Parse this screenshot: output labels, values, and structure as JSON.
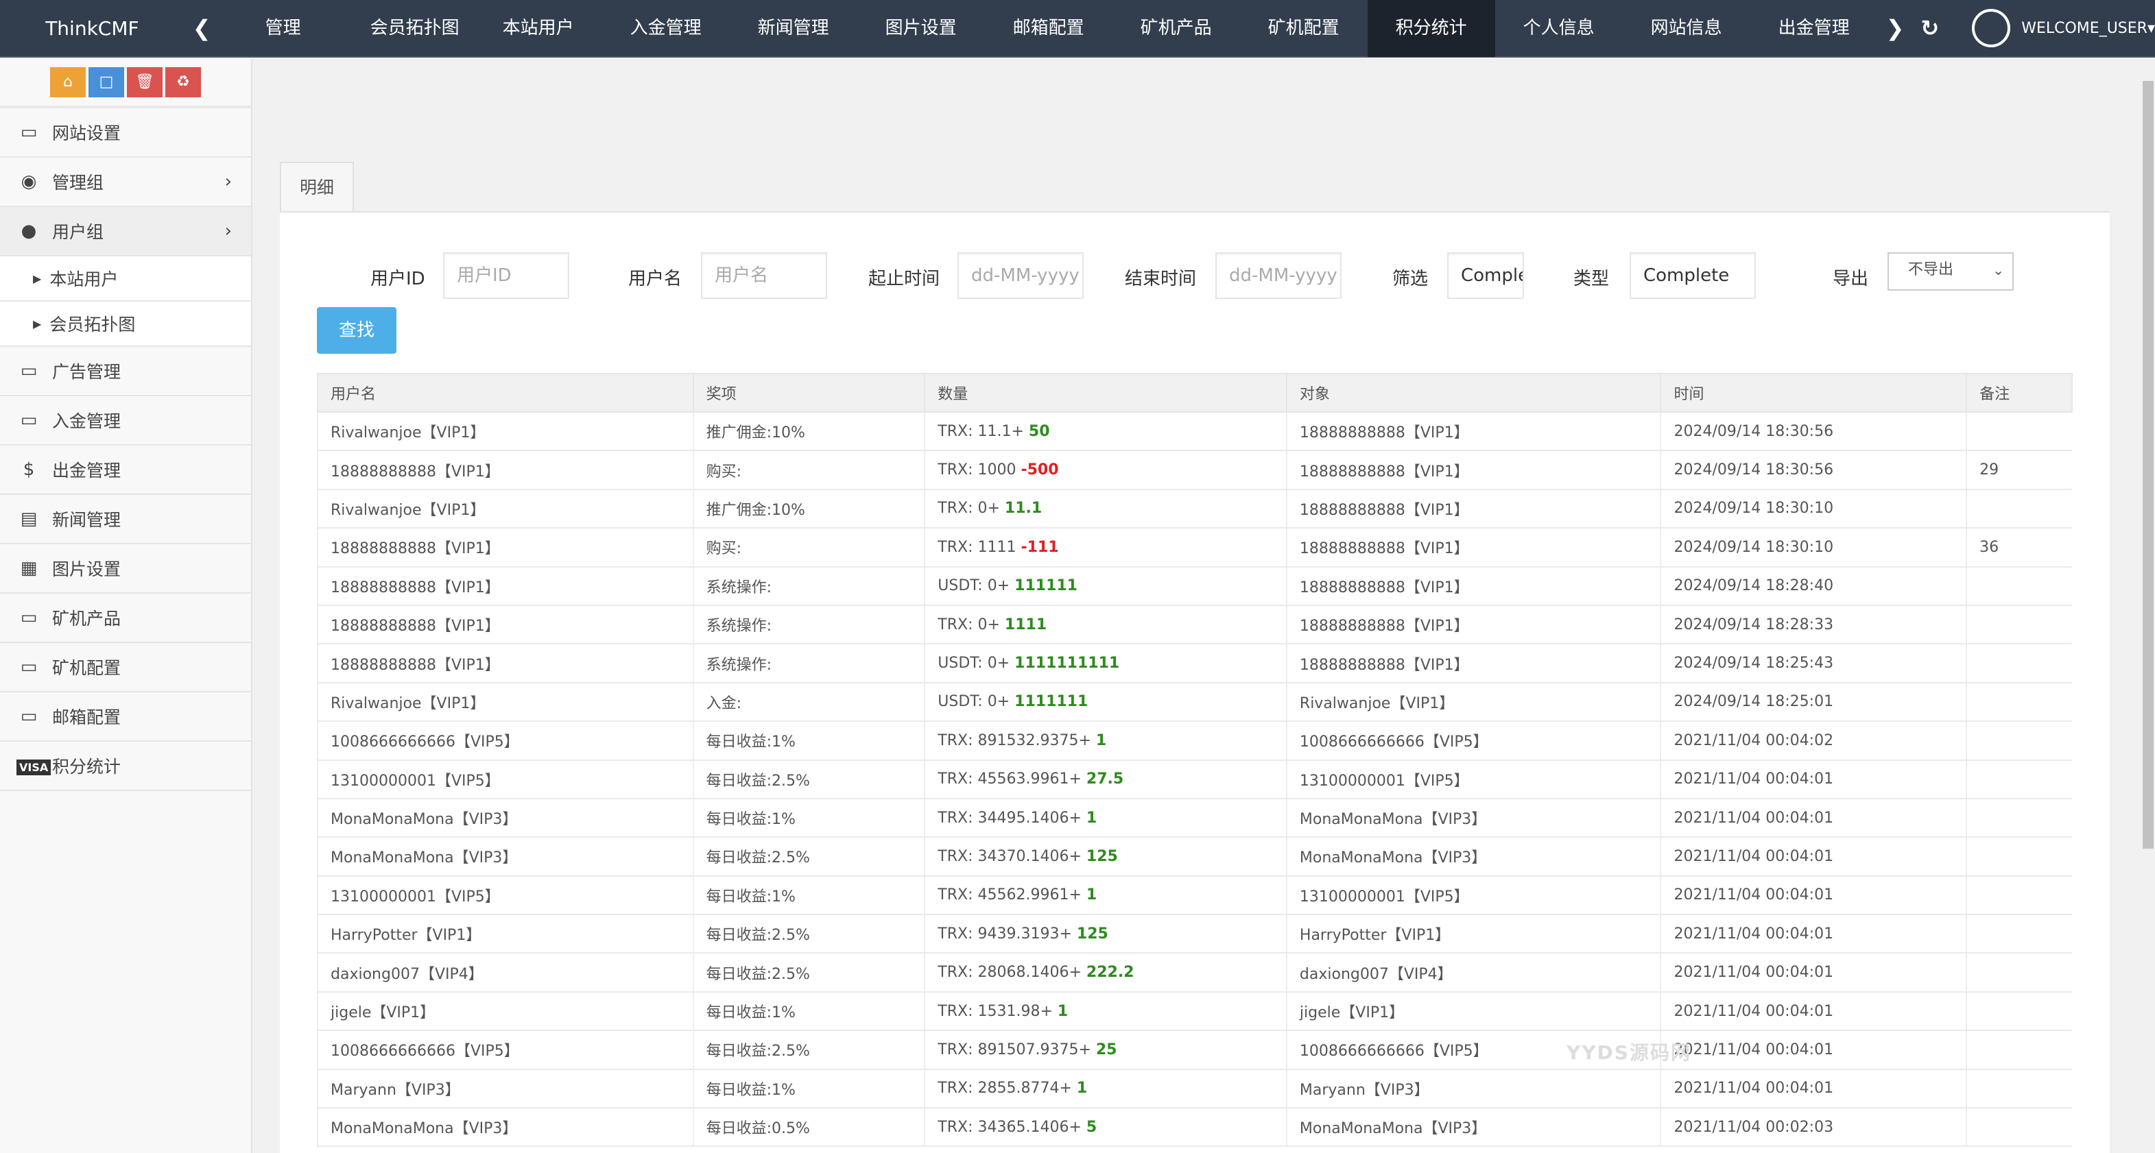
{
  "brand": "ThinkCMF",
  "nav": {
    "items": [
      "管理",
      "会员拓扑图",
      "本站用户",
      "入金管理",
      "新闻管理",
      "图片设置",
      "邮箱配置",
      "矿机产品",
      "矿机配置",
      "积分统计",
      "个人信息",
      "网站信息",
      "出金管理"
    ],
    "active": "积分统计",
    "user": "WELCOME_USER"
  },
  "sidebar": {
    "items": [
      {
        "label": "网站设置",
        "icon": "monitor-icon"
      },
      {
        "label": "管理组",
        "icon": "user-circle-icon"
      },
      {
        "label": "用户组",
        "icon": "user-icon"
      },
      {
        "label": "广告管理",
        "icon": "monitor-icon"
      },
      {
        "label": "入金管理",
        "icon": "monitor-icon"
      },
      {
        "label": "出金管理",
        "icon": "dollar-icon"
      },
      {
        "label": "新闻管理",
        "icon": "newspaper-icon"
      },
      {
        "label": "图片设置",
        "icon": "image-icon"
      },
      {
        "label": "矿机产品",
        "icon": "monitor-icon"
      },
      {
        "label": "矿机配置",
        "icon": "monitor-icon"
      },
      {
        "label": "邮箱配置",
        "icon": "monitor-icon"
      },
      {
        "label": "积分统计",
        "icon": "visa-icon"
      }
    ],
    "sub": [
      "本站用户",
      "会员拓扑图"
    ]
  },
  "tab": "明细",
  "filters": {
    "userid_label": "用户ID",
    "userid_ph": "用户ID",
    "username_label": "用户名",
    "username_ph": "用户名",
    "start_label": "起止时间",
    "start_ph": "dd-MM-yyyy",
    "end_label": "结束时间",
    "end_ph": "dd-MM-yyyy",
    "filter_label": "筛选",
    "filter_value": "Comple",
    "type_label": "类型",
    "type_value": "Complete",
    "export_label": "导出",
    "export_value": "不导出",
    "search": "查找"
  },
  "table": {
    "headers": [
      "用户名",
      "奖项",
      "数量",
      "对象",
      "时间",
      "备注"
    ],
    "rows": [
      [
        "Rivalwanjoe【VIP1】",
        "推广佣金:10%",
        "TRX: 11.1+ ",
        "50",
        "pos",
        "18888888888【VIP1】",
        "2024/09/14 18:30:56",
        ""
      ],
      [
        "18888888888【VIP1】",
        "购买:",
        "TRX: 1000 ",
        "-500",
        "neg",
        "18888888888【VIP1】",
        "2024/09/14 18:30:56",
        "29"
      ],
      [
        "Rivalwanjoe【VIP1】",
        "推广佣金:10%",
        "TRX: 0+ ",
        "11.1",
        "pos",
        "18888888888【VIP1】",
        "2024/09/14 18:30:10",
        ""
      ],
      [
        "18888888888【VIP1】",
        "购买:",
        "TRX: 1111 ",
        "-111",
        "neg",
        "18888888888【VIP1】",
        "2024/09/14 18:30:10",
        "36"
      ],
      [
        "18888888888【VIP1】",
        "系统操作:",
        "USDT: 0+ ",
        "111111",
        "pos",
        "18888888888【VIP1】",
        "2024/09/14 18:28:40",
        ""
      ],
      [
        "18888888888【VIP1】",
        "系统操作:",
        "TRX: 0+ ",
        "1111",
        "pos",
        "18888888888【VIP1】",
        "2024/09/14 18:28:33",
        ""
      ],
      [
        "18888888888【VIP1】",
        "系统操作:",
        "USDT: 0+ ",
        "1111111111",
        "pos",
        "18888888888【VIP1】",
        "2024/09/14 18:25:43",
        ""
      ],
      [
        "Rivalwanjoe【VIP1】",
        "入金:",
        "USDT: 0+ ",
        "1111111",
        "pos",
        "Rivalwanjoe【VIP1】",
        "2024/09/14 18:25:01",
        ""
      ],
      [
        "1008666666666【VIP5】",
        "每日收益:1%",
        "TRX: 891532.9375+ ",
        "1",
        "pos",
        "1008666666666【VIP5】",
        "2021/11/04 00:04:02",
        ""
      ],
      [
        "13100000001【VIP5】",
        "每日收益:2.5%",
        "TRX: 45563.9961+ ",
        "27.5",
        "pos",
        "13100000001【VIP5】",
        "2021/11/04 00:04:01",
        ""
      ],
      [
        "MonaMonaMona【VIP3】",
        "每日收益:1%",
        "TRX: 34495.1406+ ",
        "1",
        "pos",
        "MonaMonaMona【VIP3】",
        "2021/11/04 00:04:01",
        ""
      ],
      [
        "MonaMonaMona【VIP3】",
        "每日收益:2.5%",
        "TRX: 34370.1406+ ",
        "125",
        "pos",
        "MonaMonaMona【VIP3】",
        "2021/11/04 00:04:01",
        ""
      ],
      [
        "13100000001【VIP5】",
        "每日收益:1%",
        "TRX: 45562.9961+ ",
        "1",
        "pos",
        "13100000001【VIP5】",
        "2021/11/04 00:04:01",
        ""
      ],
      [
        "HarryPotter【VIP1】",
        "每日收益:2.5%",
        "TRX: 9439.3193+ ",
        "125",
        "pos",
        "HarryPotter【VIP1】",
        "2021/11/04 00:04:01",
        ""
      ],
      [
        "daxiong007【VIP4】",
        "每日收益:2.5%",
        "TRX: 28068.1406+ ",
        "222.2",
        "pos",
        "daxiong007【VIP4】",
        "2021/11/04 00:04:01",
        ""
      ],
      [
        "jigele【VIP1】",
        "每日收益:1%",
        "TRX: 1531.98+ ",
        "1",
        "pos",
        "jigele【VIP1】",
        "2021/11/04 00:04:01",
        ""
      ],
      [
        "1008666666666【VIP5】",
        "每日收益:2.5%",
        "TRX: 891507.9375+ ",
        "25",
        "pos",
        "1008666666666【VIP5】",
        "2021/11/04 00:04:01",
        ""
      ],
      [
        "Maryann【VIP3】",
        "每日收益:1%",
        "TRX: 2855.8774+ ",
        "1",
        "pos",
        "Maryann【VIP3】",
        "2021/11/04 00:04:01",
        ""
      ],
      [
        "MonaMonaMona【VIP3】",
        "每日收益:0.5%",
        "TRX: 34365.1406+ ",
        "5",
        "pos",
        "MonaMonaMona【VIP3】",
        "2021/11/04 00:02:03",
        ""
      ]
    ]
  },
  "watermark": "YYDS源码网",
  "colors": {
    "topbar": "#323e4e",
    "active_nav": "#1d232d",
    "primary": "#4eaee8",
    "positive": "#2e8b1f",
    "negative": "#e02020"
  }
}
